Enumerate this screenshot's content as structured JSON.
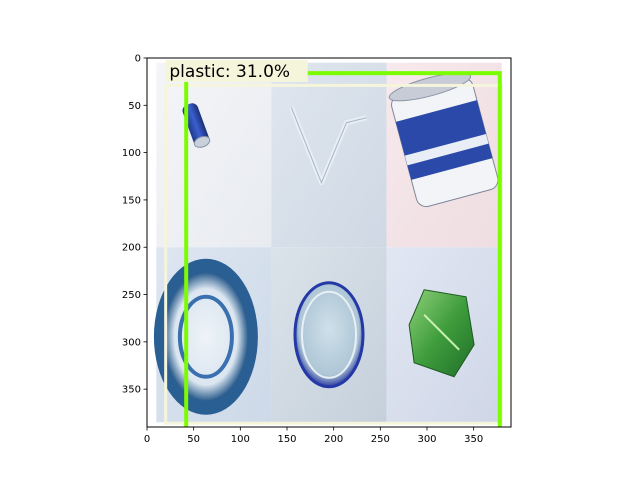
{
  "chart_data": {
    "type": "image_detection",
    "xlim": [
      0,
      390
    ],
    "ylim": [
      390,
      0
    ],
    "xticks": [
      0,
      50,
      100,
      150,
      200,
      250,
      300,
      350
    ],
    "yticks": [
      0,
      50,
      100,
      150,
      200,
      250,
      300,
      350
    ],
    "grid": false,
    "tiles": [
      {
        "name": "can-lying-blue",
        "col": 0,
        "row": 0
      },
      {
        "name": "plastic-straw",
        "col": 1,
        "row": 0
      },
      {
        "name": "tin-can-large",
        "col": 2,
        "row": 0
      },
      {
        "name": "blue-bottle-cap",
        "col": 0,
        "row": 1
      },
      {
        "name": "clear-lid",
        "col": 1,
        "row": 1
      },
      {
        "name": "green-wrapper",
        "col": 2,
        "row": 1
      }
    ],
    "detections": [
      {
        "label": "plastic: 31.0%",
        "class": "plastic",
        "score_percent": 31.0,
        "box": {
          "x0": 42,
          "y0": 16,
          "x1": 378,
          "y1": 394
        },
        "color": "#7cfc00"
      }
    ],
    "inner_frame": {
      "x0": 20,
      "y0": 29,
      "x1": 380,
      "y1": 386,
      "color": "#f5f5dc"
    }
  }
}
